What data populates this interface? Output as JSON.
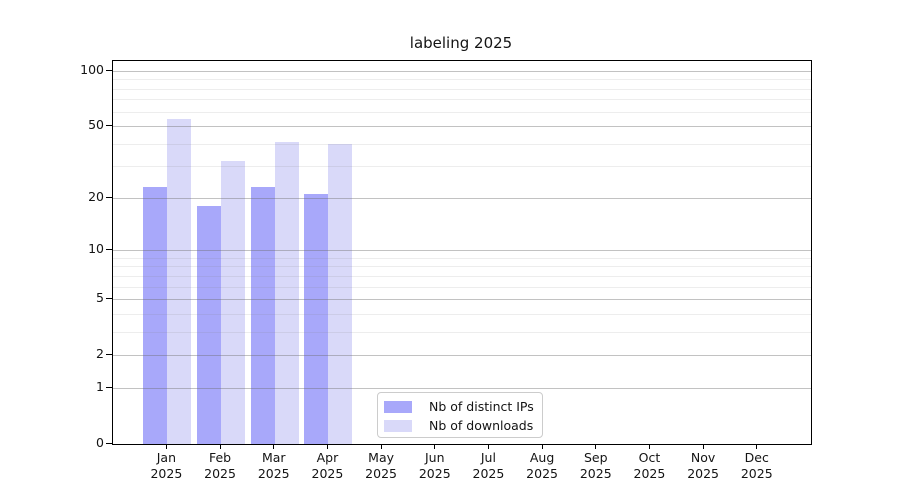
{
  "chart_data": {
    "type": "bar",
    "title": "labeling 2025",
    "categories": [
      "Jan",
      "Feb",
      "Mar",
      "Apr",
      "May",
      "Jun",
      "Jul",
      "Aug",
      "Sep",
      "Oct",
      "Nov",
      "Dec"
    ],
    "x_year_label": "2025",
    "series": [
      {
        "name": "Nb of distinct IPs",
        "color": "#a8a8fa",
        "values": [
          23,
          18,
          23,
          21,
          0,
          0,
          0,
          0,
          0,
          0,
          0,
          0
        ]
      },
      {
        "name": "Nb of downloads",
        "color": "#d9d9f9",
        "values": [
          55,
          32,
          41,
          40,
          0,
          0,
          0,
          0,
          0,
          0,
          0,
          0
        ]
      }
    ],
    "y_scale": "log1p",
    "y_ticks": [
      0,
      1,
      2,
      5,
      10,
      20,
      50,
      100
    ],
    "y_minor_gridlines": [
      3,
      4,
      6,
      7,
      8,
      9,
      30,
      40,
      60,
      70,
      80,
      90
    ],
    "ylim": [
      0,
      113
    ],
    "grid": "horizontal",
    "legend_position": "lower-center"
  }
}
